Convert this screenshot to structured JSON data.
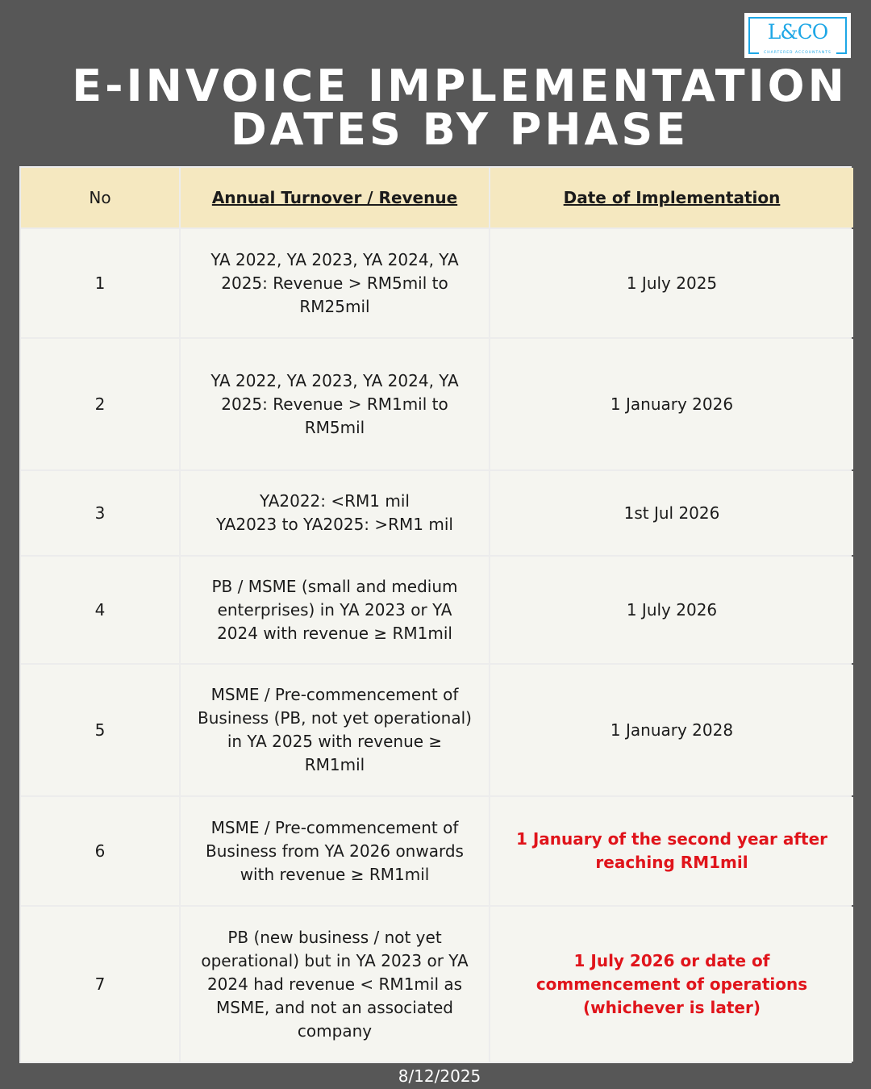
{
  "logo": {
    "text": "L&CO",
    "subtitle": "CHARTERED ACCOUNTANTS",
    "color": "#1ea7e6"
  },
  "title": {
    "line1": "E-INVOICE IMPLEMENTATION",
    "line2": "DATES BY PHASE"
  },
  "table": {
    "headers": [
      "No",
      "Annual Turnover / Revenue",
      "Date of Implementation"
    ],
    "rows": [
      {
        "no": "1",
        "revenue": "YA 2022, YA 2023, YA 2024, YA 2025: Revenue > RM5mil to RM25mil",
        "date": "1 July 2025",
        "highlight": false
      },
      {
        "no": "2",
        "revenue": "YA 2022, YA 2023, YA 2024, YA 2025: Revenue > RM1mil to RM5mil",
        "date": "1 January 2026",
        "highlight": false
      },
      {
        "no": "3",
        "revenue": "YA2022: <RM1 mil\nYA2023 to YA2025: >RM1 mil",
        "date": "1st Jul 2026",
        "highlight": false
      },
      {
        "no": "4",
        "revenue": "PB / MSME (small and medium enterprises) in YA 2023 or YA 2024 with revenue ≥ RM1mil",
        "date": "1 July 2026",
        "highlight": false
      },
      {
        "no": "5",
        "revenue": "MSME / Pre-commencement of Business (PB, not yet operational) in YA 2025 with revenue ≥ RM1mil",
        "date": "1 January 2028",
        "highlight": false
      },
      {
        "no": "6",
        "revenue": "MSME / Pre-commencement of Business from YA 2026 onwards with revenue ≥ RM1mil",
        "date": "1 January of the second year after reaching RM1mil",
        "highlight": true
      },
      {
        "no": "7",
        "revenue": "PB (new business / not yet operational) but in YA 2023 or YA 2024 had revenue < RM1mil as MSME, and not an associated company",
        "date": "1 July 2026 or date of commencement of operations (whichever is later)",
        "highlight": true
      }
    ]
  },
  "footer": {
    "date": "8/12/2025"
  },
  "colors": {
    "background": "#575757",
    "header": "#f5e8c0",
    "cell": "#f5f5f0",
    "highlight": "#e0141b"
  }
}
